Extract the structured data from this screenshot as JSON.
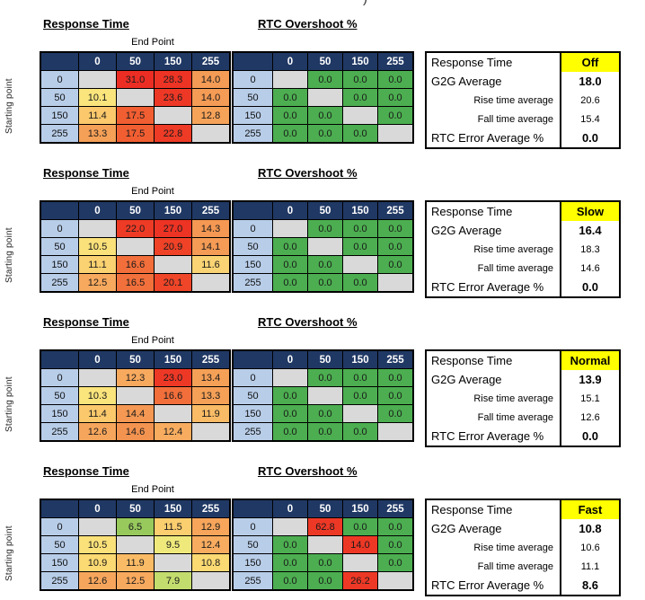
{
  "labels": {
    "rt_title": "Response Time",
    "rtc_title": "RTC Overshoot %",
    "end_point": "End Point",
    "starting_point": "Starting point",
    "cols": [
      "0",
      "50",
      "150",
      "255"
    ],
    "rows": [
      "0",
      "50",
      "150",
      "255"
    ],
    "top_fragment": ")"
  },
  "colors": {
    "header_bg": "#203864",
    "row_label_bg": "#B8CDE8",
    "blank_bg": "#D9D9D9",
    "ok_green": "#4CAE50",
    "alert_red": "#EE3826",
    "mode_bg": "#FFFF00"
  },
  "groups": [
    {
      "rt": [
        [
          {
            "v": "",
            "bg": "#D9D9D9"
          },
          {
            "v": "31.0",
            "bg": "#EC2D24"
          },
          {
            "v": "28.3",
            "bg": "#ED3324"
          },
          {
            "v": "14.0",
            "bg": "#F49B55"
          }
        ],
        [
          {
            "v": "10.1",
            "bg": "#FAE57D"
          },
          {
            "v": "",
            "bg": "#D9D9D9"
          },
          {
            "v": "23.6",
            "bg": "#EE3826"
          },
          {
            "v": "14.0",
            "bg": "#F49B55"
          }
        ],
        [
          {
            "v": "11.4",
            "bg": "#FBC96C"
          },
          {
            "v": "17.5",
            "bg": "#F15E31"
          },
          {
            "v": "",
            "bg": "#D9D9D9"
          },
          {
            "v": "12.8",
            "bg": "#F6A35A"
          }
        ],
        [
          {
            "v": "13.3",
            "bg": "#F5A057"
          },
          {
            "v": "17.5",
            "bg": "#F15E31"
          },
          {
            "v": "22.8",
            "bg": "#EE3B26"
          },
          {
            "v": "",
            "bg": "#D9D9D9"
          }
        ]
      ],
      "rtc": [
        [
          {
            "v": "",
            "bg": "#D9D9D9"
          },
          {
            "v": "0.0",
            "bg": "#4CAE50"
          },
          {
            "v": "0.0",
            "bg": "#4CAE50"
          },
          {
            "v": "0.0",
            "bg": "#4CAE50"
          }
        ],
        [
          {
            "v": "0.0",
            "bg": "#4CAE50"
          },
          {
            "v": "",
            "bg": "#D9D9D9"
          },
          {
            "v": "0.0",
            "bg": "#4CAE50"
          },
          {
            "v": "0.0",
            "bg": "#4CAE50"
          }
        ],
        [
          {
            "v": "0.0",
            "bg": "#4CAE50"
          },
          {
            "v": "0.0",
            "bg": "#4CAE50"
          },
          {
            "v": "",
            "bg": "#D9D9D9"
          },
          {
            "v": "0.0",
            "bg": "#4CAE50"
          }
        ],
        [
          {
            "v": "0.0",
            "bg": "#4CAE50"
          },
          {
            "v": "0.0",
            "bg": "#4CAE50"
          },
          {
            "v": "0.0",
            "bg": "#4CAE50"
          },
          {
            "v": "",
            "bg": "#D9D9D9"
          }
        ]
      ],
      "summary": {
        "header_label": "Response Time",
        "mode": "Off",
        "rows": [
          {
            "label": "G2G Average",
            "value": "18.0"
          },
          {
            "label": "Rise time average",
            "value": "20.6"
          },
          {
            "label": "Fall time average",
            "value": "15.4"
          },
          {
            "label": "RTC Error Average %",
            "value": "0.0"
          }
        ]
      }
    },
    {
      "rt": [
        [
          {
            "v": "",
            "bg": "#D9D9D9"
          },
          {
            "v": "22.0",
            "bg": "#EE3B26"
          },
          {
            "v": "27.0",
            "bg": "#ED3324"
          },
          {
            "v": "14.3",
            "bg": "#F49853"
          }
        ],
        [
          {
            "v": "10.5",
            "bg": "#FAE17A"
          },
          {
            "v": "",
            "bg": "#D9D9D9"
          },
          {
            "v": "20.9",
            "bg": "#EF4227"
          },
          {
            "v": "14.1",
            "bg": "#F49B55"
          }
        ],
        [
          {
            "v": "11.1",
            "bg": "#FBD271"
          },
          {
            "v": "16.6",
            "bg": "#F26E3A"
          },
          {
            "v": "",
            "bg": "#D9D9D9"
          },
          {
            "v": "11.6",
            "bg": "#FAD474"
          }
        ],
        [
          {
            "v": "12.5",
            "bg": "#F7A95E"
          },
          {
            "v": "16.5",
            "bg": "#F2703B"
          },
          {
            "v": "20.1",
            "bg": "#EF4528"
          },
          {
            "v": "",
            "bg": "#D9D9D9"
          }
        ]
      ],
      "rtc": [
        [
          {
            "v": "",
            "bg": "#D9D9D9"
          },
          {
            "v": "0.0",
            "bg": "#4CAE50"
          },
          {
            "v": "0.0",
            "bg": "#4CAE50"
          },
          {
            "v": "0.0",
            "bg": "#4CAE50"
          }
        ],
        [
          {
            "v": "0.0",
            "bg": "#4CAE50"
          },
          {
            "v": "",
            "bg": "#D9D9D9"
          },
          {
            "v": "0.0",
            "bg": "#4CAE50"
          },
          {
            "v": "0.0",
            "bg": "#4CAE50"
          }
        ],
        [
          {
            "v": "0.0",
            "bg": "#4CAE50"
          },
          {
            "v": "0.0",
            "bg": "#4CAE50"
          },
          {
            "v": "",
            "bg": "#D9D9D9"
          },
          {
            "v": "0.0",
            "bg": "#4CAE50"
          }
        ],
        [
          {
            "v": "0.0",
            "bg": "#4CAE50"
          },
          {
            "v": "0.0",
            "bg": "#4CAE50"
          },
          {
            "v": "0.0",
            "bg": "#4CAE50"
          },
          {
            "v": "",
            "bg": "#D9D9D9"
          }
        ]
      ],
      "summary": {
        "header_label": "Response Time",
        "mode": "Slow",
        "rows": [
          {
            "label": "G2G Average",
            "value": "16.4"
          },
          {
            "label": "Rise time average",
            "value": "18.3"
          },
          {
            "label": "Fall time average",
            "value": "14.6"
          },
          {
            "label": "RTC Error Average %",
            "value": "0.0"
          }
        ]
      }
    },
    {
      "rt": [
        [
          {
            "v": "",
            "bg": "#D9D9D9"
          },
          {
            "v": "12.3",
            "bg": "#F7A95E"
          },
          {
            "v": "23.0",
            "bg": "#EE3826"
          },
          {
            "v": "13.4",
            "bg": "#F5A057"
          }
        ],
        [
          {
            "v": "10.3",
            "bg": "#FAE47C"
          },
          {
            "v": "",
            "bg": "#D9D9D9"
          },
          {
            "v": "16.6",
            "bg": "#F26E3A"
          },
          {
            "v": "13.3",
            "bg": "#F5A057"
          }
        ],
        [
          {
            "v": "11.4",
            "bg": "#FBC96C"
          },
          {
            "v": "14.4",
            "bg": "#F49853"
          },
          {
            "v": "",
            "bg": "#D9D9D9"
          },
          {
            "v": "11.9",
            "bg": "#F9BB66"
          }
        ],
        [
          {
            "v": "12.6",
            "bg": "#F6A65C"
          },
          {
            "v": "14.6",
            "bg": "#F39350"
          },
          {
            "v": "12.4",
            "bg": "#F7AC60"
          },
          {
            "v": "",
            "bg": "#D9D9D9"
          }
        ]
      ],
      "rtc": [
        [
          {
            "v": "",
            "bg": "#D9D9D9"
          },
          {
            "v": "0.0",
            "bg": "#4CAE50"
          },
          {
            "v": "0.0",
            "bg": "#4CAE50"
          },
          {
            "v": "0.0",
            "bg": "#4CAE50"
          }
        ],
        [
          {
            "v": "0.0",
            "bg": "#4CAE50"
          },
          {
            "v": "",
            "bg": "#D9D9D9"
          },
          {
            "v": "0.0",
            "bg": "#4CAE50"
          },
          {
            "v": "0.0",
            "bg": "#4CAE50"
          }
        ],
        [
          {
            "v": "0.0",
            "bg": "#4CAE50"
          },
          {
            "v": "0.0",
            "bg": "#4CAE50"
          },
          {
            "v": "",
            "bg": "#D9D9D9"
          },
          {
            "v": "0.0",
            "bg": "#4CAE50"
          }
        ],
        [
          {
            "v": "0.0",
            "bg": "#4CAE50"
          },
          {
            "v": "0.0",
            "bg": "#4CAE50"
          },
          {
            "v": "0.0",
            "bg": "#4CAE50"
          },
          {
            "v": "",
            "bg": "#D9D9D9"
          }
        ]
      ],
      "summary": {
        "header_label": "Response Time",
        "mode": "Normal",
        "rows": [
          {
            "label": "G2G Average",
            "value": "13.9"
          },
          {
            "label": "Rise time average",
            "value": "15.1"
          },
          {
            "label": "Fall time average",
            "value": "12.6"
          },
          {
            "label": "RTC Error Average %",
            "value": "0.0"
          }
        ]
      }
    },
    {
      "rt": [
        [
          {
            "v": "",
            "bg": "#D9D9D9"
          },
          {
            "v": "6.5",
            "bg": "#97C95D"
          },
          {
            "v": "11.5",
            "bg": "#FBCE6F"
          },
          {
            "v": "12.9",
            "bg": "#F6A55B"
          }
        ],
        [
          {
            "v": "10.5",
            "bg": "#FAE17A"
          },
          {
            "v": "",
            "bg": "#D9D9D9"
          },
          {
            "v": "9.5",
            "bg": "#EFE97C"
          },
          {
            "v": "12.4",
            "bg": "#F7AC60"
          }
        ],
        [
          {
            "v": "10.9",
            "bg": "#FBD973"
          },
          {
            "v": "11.9",
            "bg": "#F9BB66"
          },
          {
            "v": "",
            "bg": "#D9D9D9"
          },
          {
            "v": "10.8",
            "bg": "#FBD973"
          }
        ],
        [
          {
            "v": "12.6",
            "bg": "#F6A65C"
          },
          {
            "v": "12.5",
            "bg": "#F7A95E"
          },
          {
            "v": "7.9",
            "bg": "#C3DC6E"
          },
          {
            "v": "",
            "bg": "#D9D9D9"
          }
        ]
      ],
      "rtc": [
        [
          {
            "v": "",
            "bg": "#D9D9D9"
          },
          {
            "v": "62.8",
            "bg": "#EE3826"
          },
          {
            "v": "0.0",
            "bg": "#4CAE50"
          },
          {
            "v": "0.0",
            "bg": "#4CAE50"
          }
        ],
        [
          {
            "v": "0.0",
            "bg": "#4CAE50"
          },
          {
            "v": "",
            "bg": "#D9D9D9"
          },
          {
            "v": "14.0",
            "bg": "#EE3826"
          },
          {
            "v": "0.0",
            "bg": "#4CAE50"
          }
        ],
        [
          {
            "v": "0.0",
            "bg": "#4CAE50"
          },
          {
            "v": "0.0",
            "bg": "#4CAE50"
          },
          {
            "v": "",
            "bg": "#D9D9D9"
          },
          {
            "v": "0.0",
            "bg": "#4CAE50"
          }
        ],
        [
          {
            "v": "0.0",
            "bg": "#4CAE50"
          },
          {
            "v": "0.0",
            "bg": "#4CAE50"
          },
          {
            "v": "26.2",
            "bg": "#EE3826"
          },
          {
            "v": "",
            "bg": "#D9D9D9"
          }
        ]
      ],
      "summary": {
        "header_label": "Response Time",
        "mode": "Fast",
        "rows": [
          {
            "label": "G2G Average",
            "value": "10.8"
          },
          {
            "label": "Rise time average",
            "value": "10.6"
          },
          {
            "label": "Fall time average",
            "value": "11.1"
          },
          {
            "label": "RTC Error Average %",
            "value": "8.6"
          }
        ]
      }
    }
  ]
}
